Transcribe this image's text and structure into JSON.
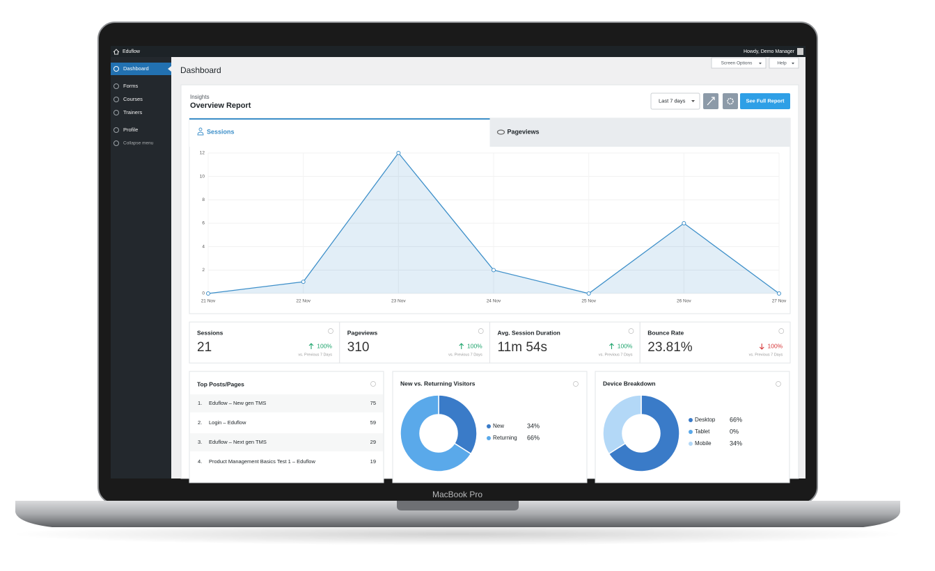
{
  "laptop_label": "MacBook Pro",
  "admin_bar": {
    "site": "Eduflow",
    "greeting": "Howdy, Demo Manager"
  },
  "sidebar": {
    "items": [
      "Dashboard",
      "Forms",
      "Courses",
      "Trainers",
      "Profile",
      "Collapse menu"
    ],
    "active": 0
  },
  "page": {
    "title": "Dashboard",
    "buttons": [
      "Screen Options",
      "Help"
    ]
  },
  "report": {
    "kicker": "Insights",
    "title": "Overview Report",
    "range": "Last 7 days",
    "action": "See Full Report",
    "tabs": [
      "Sessions",
      "Pageviews"
    ],
    "active_tab": 0
  },
  "chart_data": [
    {
      "type": "line",
      "categories": [
        "21 Nov",
        "22 Nov",
        "23 Nov",
        "24 Nov",
        "25 Nov",
        "26 Nov",
        "27 Nov"
      ],
      "values": [
        0,
        1,
        12,
        2,
        0,
        6,
        0
      ],
      "color": "#3d8fc9",
      "ylim": [
        0,
        12
      ],
      "yticks": [
        0,
        2,
        4,
        6,
        8,
        10,
        12
      ],
      "grid": true
    },
    {
      "type": "donut",
      "title": "New vs. Returning Visitors",
      "categories": [
        "New",
        "Returning"
      ],
      "values": [
        34,
        66
      ],
      "value_labels": [
        "34%",
        "66%"
      ],
      "colors": [
        "#3a7bc8",
        "#5aa9ea"
      ]
    },
    {
      "type": "donut",
      "title": "Device Breakdown",
      "categories": [
        "Desktop",
        "Tablet",
        "Mobile"
      ],
      "values": [
        66,
        0,
        34
      ],
      "value_labels": [
        "66%",
        "0%",
        "34%"
      ],
      "colors": [
        "#3a7bc8",
        "#5aa9ea",
        "#b3d8f7"
      ]
    }
  ],
  "stats_note": "vs. Previous 7 Days",
  "stats": [
    {
      "label": "Sessions",
      "value": 21,
      "change": "100%",
      "direction": "up"
    },
    {
      "label": "Pageviews",
      "value": 310,
      "change": "100%",
      "direction": "up"
    },
    {
      "label": "Avg. Session Duration",
      "value": "11m 54s",
      "change": "100%",
      "direction": "up"
    },
    {
      "label": "Bounce Rate",
      "value": "23.81%",
      "change": "100%",
      "direction": "down"
    }
  ],
  "top_pages": {
    "title": "Top Posts/Pages",
    "rows": [
      {
        "rank": "1.",
        "name": "Eduflow – New gen TMS",
        "views": 75
      },
      {
        "rank": "2.",
        "name": "Login – Eduflow",
        "views": 59
      },
      {
        "rank": "3.",
        "name": "Eduflow – Next gen TMS",
        "views": 29
      },
      {
        "rank": "4.",
        "name": "Product Management Basics Test 1 – Eduflow",
        "views": 19
      }
    ]
  }
}
